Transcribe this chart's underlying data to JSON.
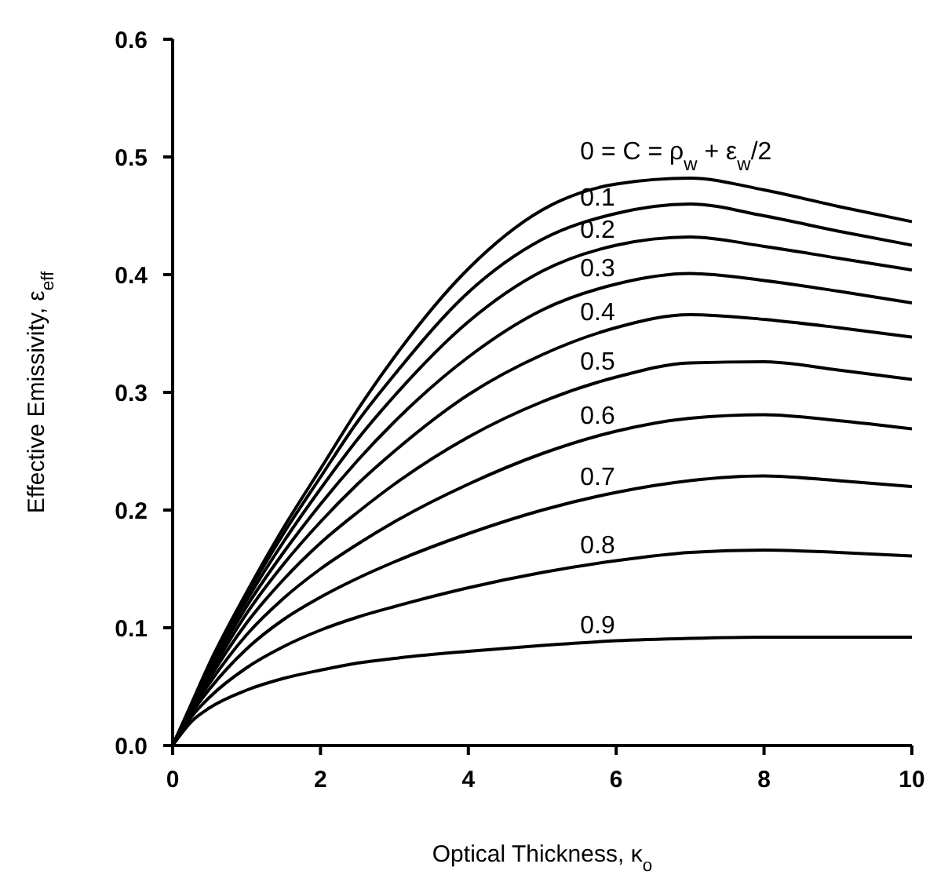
{
  "chart_data": {
    "type": "line",
    "xlabel": "Optical Thickness, κ$_{o}$",
    "ylabel": "Effective Emissivity, ε$_{eff}$",
    "x": [
      0,
      0.25,
      0.5,
      1,
      1.5,
      2,
      2.5,
      3,
      4,
      5,
      6,
      7,
      8,
      9,
      10
    ],
    "xlim": [
      0,
      10
    ],
    "xticks": [
      0,
      2,
      4,
      6,
      8,
      10
    ],
    "ylim": [
      0,
      0.6
    ],
    "yticks": [
      {
        "value": 0,
        "label": "0.0"
      },
      0.1,
      0.2,
      0.3,
      0.4,
      0.5,
      0.6
    ],
    "marker": "none",
    "line_style": "solid",
    "series": [
      {
        "name": "0 = C = ρ$_{w}$ + ε$_{w}$/2",
        "color": "#000000",
        "values": [
          0,
          0.035,
          0.07,
          0.13,
          0.185,
          0.235,
          0.285,
          0.33,
          0.405,
          0.455,
          0.477,
          0.482,
          0.472,
          0.458,
          0.445
        ]
      },
      {
        "name": "0.1",
        "color": "#000000",
        "values": [
          0,
          0.034,
          0.068,
          0.127,
          0.18,
          0.228,
          0.275,
          0.315,
          0.385,
          0.43,
          0.452,
          0.46,
          0.45,
          0.437,
          0.425
        ]
      },
      {
        "name": "0.2",
        "color": "#000000",
        "values": [
          0,
          0.033,
          0.066,
          0.123,
          0.173,
          0.218,
          0.26,
          0.297,
          0.36,
          0.403,
          0.425,
          0.432,
          0.424,
          0.414,
          0.404
        ]
      },
      {
        "name": "0.3",
        "color": "#000000",
        "values": [
          0,
          0.032,
          0.063,
          0.118,
          0.164,
          0.205,
          0.242,
          0.275,
          0.33,
          0.37,
          0.392,
          0.401,
          0.395,
          0.386,
          0.376
        ]
      },
      {
        "name": "0.4",
        "color": "#000000",
        "values": [
          0,
          0.031,
          0.06,
          0.112,
          0.154,
          0.19,
          0.222,
          0.25,
          0.298,
          0.332,
          0.355,
          0.366,
          0.362,
          0.355,
          0.347
        ]
      },
      {
        "name": "0.5",
        "color": "#000000",
        "values": [
          0,
          0.03,
          0.057,
          0.104,
          0.141,
          0.172,
          0.198,
          0.222,
          0.262,
          0.292,
          0.313,
          0.325,
          0.326,
          0.319,
          0.311
        ]
      },
      {
        "name": "0.6",
        "color": "#000000",
        "values": [
          0,
          0.029,
          0.053,
          0.094,
          0.125,
          0.15,
          0.171,
          0.19,
          0.222,
          0.248,
          0.267,
          0.278,
          0.281,
          0.276,
          0.269
        ]
      },
      {
        "name": "0.7",
        "color": "#000000",
        "values": [
          0,
          0.027,
          0.048,
          0.082,
          0.107,
          0.126,
          0.142,
          0.156,
          0.18,
          0.2,
          0.215,
          0.225,
          0.229,
          0.225,
          0.22
        ]
      },
      {
        "name": "0.8",
        "color": "#000000",
        "values": [
          0,
          0.024,
          0.041,
          0.066,
          0.084,
          0.098,
          0.109,
          0.118,
          0.134,
          0.147,
          0.157,
          0.164,
          0.166,
          0.164,
          0.161
        ]
      },
      {
        "name": "0.9",
        "color": "#000000",
        "values": [
          0,
          0.02,
          0.032,
          0.047,
          0.057,
          0.064,
          0.07,
          0.074,
          0.08,
          0.085,
          0.089,
          0.091,
          0.092,
          0.092,
          0.092
        ]
      }
    ]
  }
}
